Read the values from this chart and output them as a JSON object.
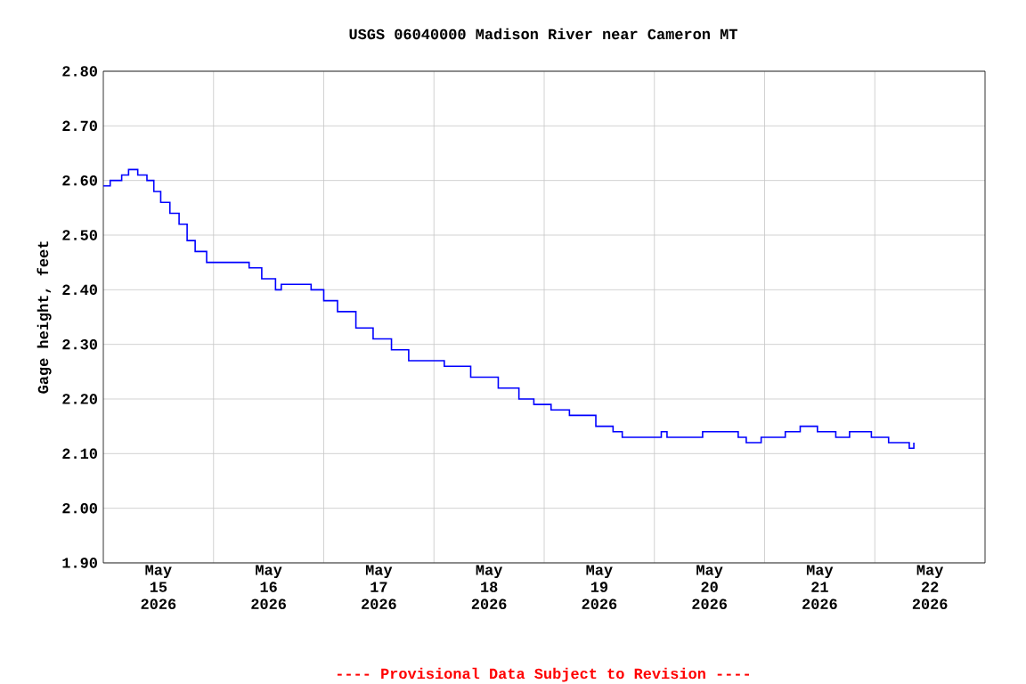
{
  "chart_data": {
    "type": "step",
    "title": "USGS 06040000 Madison River near Cameron MT",
    "ylabel": "Gage height, feet",
    "annotations": [
      "---- Provisional Data Subject to Revision ----"
    ],
    "xlim": [
      "2026-05-15T00:00",
      "2026-05-23T00:00"
    ],
    "xticks": [
      {
        "value": "2026-05-15T12:00",
        "label": "May 15 2026"
      },
      {
        "value": "2026-05-16T00:00",
        "label": null
      },
      {
        "value": "2026-05-16T12:00",
        "label": "May 16 2026"
      },
      {
        "value": "2026-05-17T00:00",
        "label": null
      },
      {
        "value": "2026-05-17T12:00",
        "label": "May 17 2026"
      },
      {
        "value": "2026-05-18T00:00",
        "label": null
      },
      {
        "value": "2026-05-18T12:00",
        "label": "May 18 2026"
      },
      {
        "value": "2026-05-19T00:00",
        "label": null
      },
      {
        "value": "2026-05-19T12:00",
        "label": "May 19 2026"
      },
      {
        "value": "2026-05-20T00:00",
        "label": null
      },
      {
        "value": "2026-05-20T12:00",
        "label": "May 20 2026"
      },
      {
        "value": "2026-05-21T00:00",
        "label": null
      },
      {
        "value": "2026-05-21T12:00",
        "label": "May 21 2026"
      },
      {
        "value": "2026-05-22T00:00",
        "label": null
      },
      {
        "value": "2026-05-22T12:00",
        "label": "May 22 2026"
      }
    ],
    "ylim": [
      1.9,
      2.8
    ],
    "yticks": [
      {
        "value": 1.9,
        "label": "1.90"
      },
      {
        "value": 2.0,
        "label": "2.00"
      },
      {
        "value": 2.1,
        "label": "2.10"
      },
      {
        "value": 2.2,
        "label": "2.20"
      },
      {
        "value": 2.3,
        "label": "2.30"
      },
      {
        "value": 2.4,
        "label": "2.40"
      },
      {
        "value": 2.5,
        "label": "2.50"
      },
      {
        "value": 2.6,
        "label": "2.60"
      },
      {
        "value": 2.7,
        "label": "2.70"
      },
      {
        "value": 2.8,
        "label": "2.80"
      }
    ],
    "grid": true,
    "color": "#0000ff",
    "x": [
      "2026-05-15T00:00",
      "2026-05-15T01:30",
      "2026-05-15T04:00",
      "2026-05-15T05:30",
      "2026-05-15T07:30",
      "2026-05-15T09:30",
      "2026-05-15T11:00",
      "2026-05-15T12:30",
      "2026-05-15T14:30",
      "2026-05-15T16:30",
      "2026-05-15T18:15",
      "2026-05-15T20:00",
      "2026-05-15T22:30",
      "2026-05-16T00:00",
      "2026-05-16T06:00",
      "2026-05-16T07:45",
      "2026-05-16T10:30",
      "2026-05-16T13:30",
      "2026-05-16T14:45",
      "2026-05-16T18:15",
      "2026-05-16T21:15",
      "2026-05-17T00:00",
      "2026-05-17T03:00",
      "2026-05-17T07:00",
      "2026-05-17T10:45",
      "2026-05-17T14:45",
      "2026-05-17T18:30",
      "2026-05-18T00:00",
      "2026-05-18T02:15",
      "2026-05-18T08:00",
      "2026-05-18T14:00",
      "2026-05-18T18:30",
      "2026-05-18T21:45",
      "2026-05-19T01:30",
      "2026-05-19T05:30",
      "2026-05-19T11:15",
      "2026-05-19T15:00",
      "2026-05-19T17:00",
      "2026-05-19T21:00",
      "2026-05-20T01:30",
      "2026-05-20T02:45",
      "2026-05-20T09:15",
      "2026-05-20T10:30",
      "2026-05-20T16:15",
      "2026-05-20T18:15",
      "2026-05-20T20:00",
      "2026-05-20T23:15",
      "2026-05-21T02:00",
      "2026-05-21T04:30",
      "2026-05-21T07:45",
      "2026-05-21T11:30",
      "2026-05-21T15:30",
      "2026-05-21T18:30",
      "2026-05-21T23:15",
      "2026-05-22T03:00",
      "2026-05-22T07:00",
      "2026-05-22T07:30",
      "2026-05-22T08:30"
    ],
    "values": [
      2.59,
      2.6,
      2.61,
      2.62,
      2.61,
      2.6,
      2.58,
      2.56,
      2.54,
      2.52,
      2.49,
      2.47,
      2.45,
      2.45,
      2.45,
      2.44,
      2.42,
      2.4,
      2.41,
      2.41,
      2.4,
      2.38,
      2.36,
      2.33,
      2.31,
      2.29,
      2.27,
      2.27,
      2.26,
      2.24,
      2.22,
      2.2,
      2.19,
      2.18,
      2.17,
      2.15,
      2.14,
      2.13,
      2.13,
      2.14,
      2.13,
      2.13,
      2.14,
      2.14,
      2.13,
      2.12,
      2.13,
      2.13,
      2.14,
      2.15,
      2.14,
      2.13,
      2.14,
      2.13,
      2.12,
      2.12,
      2.11,
      2.12
    ]
  }
}
